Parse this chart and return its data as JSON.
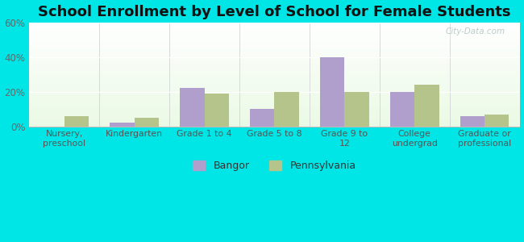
{
  "title": "School Enrollment by Level of School for Female Students",
  "categories": [
    "Nursery,\npreschool",
    "Kindergarten",
    "Grade 1 to 4",
    "Grade 5 to 8",
    "Grade 9 to\n12",
    "College\nundergrad",
    "Graduate or\nprofessional"
  ],
  "bangor": [
    0,
    2,
    22,
    10,
    40,
    20,
    6
  ],
  "pennsylvania": [
    6,
    5,
    19,
    20,
    20,
    24,
    7
  ],
  "bangor_color": "#b09fcc",
  "pennsylvania_color": "#b5c48a",
  "background_outer": "#00e5e5",
  "ylim": [
    0,
    60
  ],
  "yticks": [
    0,
    20,
    40,
    60
  ],
  "ytick_labels": [
    "0%",
    "20%",
    "40%",
    "60%"
  ],
  "title_fontsize": 13,
  "legend_labels": [
    "Bangor",
    "Pennsylvania"
  ],
  "bar_width": 0.35,
  "watermark": "City-Data.com"
}
